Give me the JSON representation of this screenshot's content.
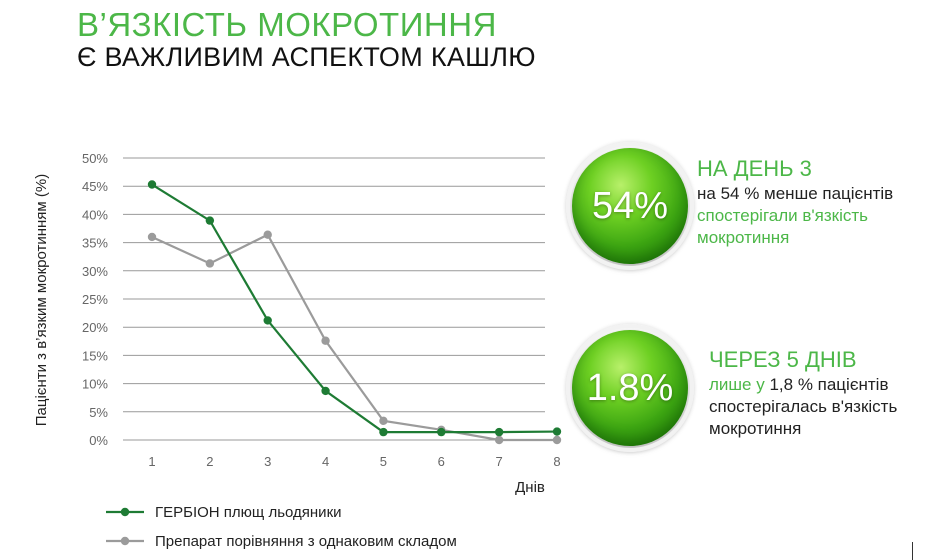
{
  "header": {
    "title": "В’ЯЗКІСТЬ МОКРОТИННЯ",
    "subtitle": "Є ВАЖЛИВИМ АСПЕКТОМ КАШЛЮ"
  },
  "chart_data": {
    "type": "line",
    "x": [
      1,
      2,
      3,
      4,
      5,
      6,
      7,
      8
    ],
    "xlabel": "Днів",
    "ylabel": "Пацієнти з в’язким мокротинням (%)",
    "ylim": [
      0,
      50
    ],
    "yticks": [
      "0%",
      "5%",
      "10%",
      "15%",
      "20%",
      "25%",
      "30%",
      "35%",
      "40%",
      "45%",
      "50%"
    ],
    "grid": true,
    "legend_position": "bottom-left",
    "series": [
      {
        "name": "ГЕРБІОН плющ льодяники",
        "color": "#1e7b34",
        "values": [
          45.3,
          38.9,
          21.2,
          8.7,
          1.4,
          1.4,
          1.4,
          1.5
        ]
      },
      {
        "name": "Препарат порівняння з однаковим складом",
        "color": "#9b9b9b",
        "values": [
          36.0,
          31.3,
          36.4,
          17.6,
          3.4,
          1.8,
          0.0,
          0.0
        ]
      }
    ]
  },
  "callouts": [
    {
      "badge": "54%",
      "head": "НА ДЕНЬ 3",
      "line1": "на 54 % менше пацієнтів",
      "line2": "спостерігали в'язкість",
      "line3": "мокротиння"
    },
    {
      "badge": "1.8%",
      "head": "ЧЕРЕЗ 5 ДНІВ",
      "line1a": "лише у",
      "line1b": " 1,8 % пацієнтів",
      "line2": "спостерігалась в'язкість",
      "line3": "мокротиння"
    }
  ],
  "colors": {
    "accent": "#4cb748",
    "series_primary": "#1e7b34",
    "series_secondary": "#9b9b9b"
  }
}
